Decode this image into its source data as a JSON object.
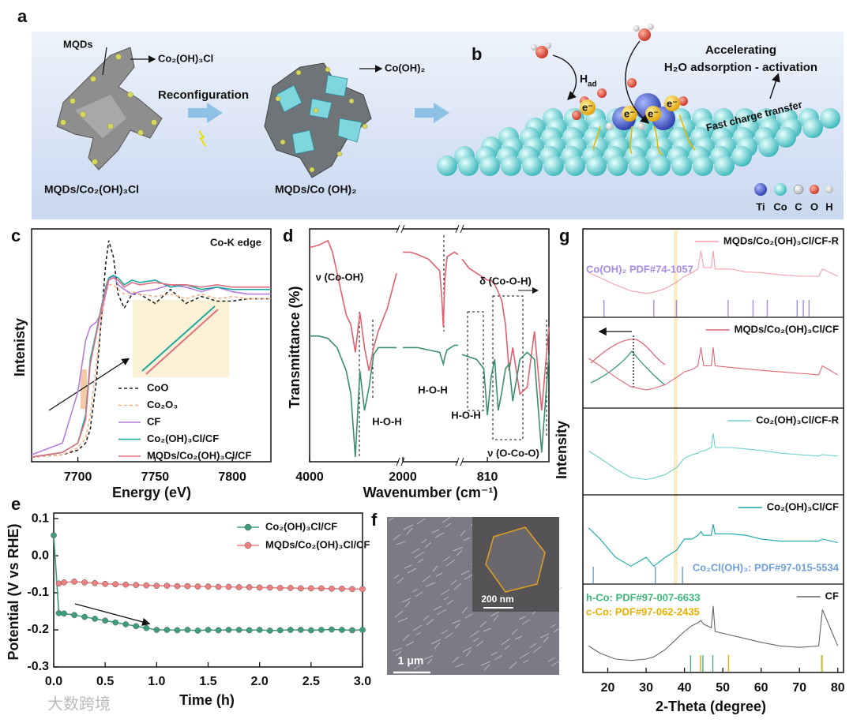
{
  "figure": {
    "panel_labels": [
      "a",
      "b",
      "c",
      "d",
      "e",
      "f",
      "g"
    ],
    "a": {
      "mqds": "MQDs",
      "precursor_phase": "Co₂(OH)₃Cl",
      "process": "Reconfiguration",
      "product_phase": "Co(OH)₂",
      "left_caption": "MQDs/Co₂(OH)₃Cl",
      "right_caption": "MQDs/Co (OH)₂"
    },
    "b": {
      "line1": "Accelerating",
      "line2": "H₂O adsorption - activation",
      "h_main": "H",
      "h_sub": "ad",
      "electron": "e⁻",
      "charge": "Fast charge transfer",
      "atoms": [
        "Ti",
        "Co",
        "C",
        "O",
        "H"
      ]
    },
    "f": {
      "inset_scale": "200 nm",
      "scale": "1 μm"
    },
    "watermark": "大数跨境"
  },
  "chart_data": [
    {
      "type": "line",
      "annotation": "Co-K edge",
      "xlabel": "Energy (eV)",
      "ylabel": "Intenisty",
      "x": [
        7670,
        7690,
        7700,
        7705,
        7708,
        7712,
        7715,
        7718,
        7720,
        7723,
        7726,
        7730,
        7735,
        7740,
        7750,
        7760,
        7770,
        7780,
        7790,
        7800,
        7810,
        7825
      ],
      "xlim": [
        7670,
        7825
      ],
      "xticks": [
        7700,
        7750,
        7800
      ],
      "ylim": [
        0,
        1
      ],
      "series": [
        {
          "name": "CoO",
          "color": "#222222",
          "dashed": true,
          "values": [
            0.02,
            0.03,
            0.05,
            0.08,
            0.14,
            0.35,
            0.6,
            0.85,
            0.95,
            0.88,
            0.72,
            0.66,
            0.72,
            0.72,
            0.68,
            0.74,
            0.68,
            0.71,
            0.69,
            0.69,
            0.7,
            0.7
          ]
        },
        {
          "name": "Co₂O₃",
          "color": "#f4b183",
          "dashed": true,
          "values": [
            0.02,
            0.03,
            0.06,
            0.1,
            0.2,
            0.42,
            0.6,
            0.72,
            0.76,
            0.76,
            0.74,
            0.72,
            0.73,
            0.72,
            0.71,
            0.72,
            0.7,
            0.72,
            0.7,
            0.71,
            0.7,
            0.7
          ]
        },
        {
          "name": "CF",
          "color": "#b57edc",
          "dashed": false,
          "values": [
            0.03,
            0.08,
            0.3,
            0.52,
            0.58,
            0.6,
            0.64,
            0.72,
            0.78,
            0.8,
            0.76,
            0.74,
            0.72,
            0.73,
            0.74,
            0.76,
            0.75,
            0.73,
            0.75,
            0.73,
            0.72,
            0.72
          ]
        },
        {
          "name": "Co₂(OH)₃Cl/CF",
          "color": "#1aa8a0",
          "dashed": false,
          "values": [
            0.02,
            0.04,
            0.08,
            0.2,
            0.44,
            0.56,
            0.66,
            0.75,
            0.79,
            0.8,
            0.79,
            0.76,
            0.78,
            0.77,
            0.78,
            0.75,
            0.76,
            0.74,
            0.75,
            0.74,
            0.74,
            0.74
          ]
        },
        {
          "name": "MQDs/Co₂(OH)₃Cl/CF",
          "color": "#e07080",
          "dashed": false,
          "values": [
            0.02,
            0.04,
            0.08,
            0.18,
            0.42,
            0.55,
            0.65,
            0.74,
            0.78,
            0.79,
            0.78,
            0.75,
            0.77,
            0.76,
            0.77,
            0.76,
            0.76,
            0.75,
            0.76,
            0.75,
            0.75,
            0.75
          ]
        }
      ]
    },
    {
      "type": "line",
      "xlabel": "Wavenumber (cm⁻¹)",
      "ylabel": "Transmittance (%)",
      "segments": [
        {
          "xlim": [
            4000,
            2050
          ]
        },
        {
          "xlim": [
            2000,
            1250
          ]
        },
        {
          "xlim": [
            880,
            640
          ]
        }
      ],
      "xticks": [
        4000,
        2000,
        810
      ],
      "ylim": [
        0,
        1
      ],
      "annotations": [
        "ν (Co-OH)",
        "H-O-H",
        "H-O-H",
        "H-O-H",
        "δ (Co-O-H)",
        "ν (O-Co-O)"
      ],
      "x": [
        4000,
        3800,
        3600,
        3500,
        3400,
        3200,
        3100,
        3000,
        2900,
        2800,
        2700,
        2600,
        2500,
        2300,
        2100,
        2025,
        2000,
        1900,
        1800,
        1650,
        1500,
        1470,
        1450,
        1430,
        1400,
        1300,
        1250,
        1000,
        880,
        860,
        840,
        820,
        810,
        800,
        790,
        780,
        770,
        760,
        750,
        740,
        720,
        700,
        680,
        660,
        640
      ],
      "series": [
        {
          "color": "#e06070",
          "values": [
            0.92,
            0.93,
            0.95,
            0.9,
            0.81,
            0.63,
            0.59,
            0.47,
            0.64,
            0.49,
            0.39,
            0.49,
            0.56,
            0.66,
            0.81,
            null,
            0.9,
            0.9,
            0.89,
            0.87,
            0.82,
            0.7,
            0.58,
            0.78,
            0.88,
            0.9,
            0.89,
            null,
            0.87,
            0.83,
            0.81,
            0.79,
            0.78,
            0.78,
            0.76,
            0.73,
            0.69,
            0.59,
            0.39,
            0.49,
            0.29,
            0.32,
            0.56,
            0.22,
            0.58
          ]
        },
        {
          "color": "#3a8f6a",
          "values": [
            0.54,
            0.54,
            0.53,
            0.51,
            0.49,
            0.39,
            0.29,
            0.02,
            0.39,
            0.22,
            0.32,
            0.46,
            0.49,
            0.49,
            0.49,
            null,
            0.49,
            0.49,
            0.49,
            0.48,
            0.47,
            0.44,
            0.42,
            0.45,
            0.48,
            0.5,
            0.5,
            null,
            0.46,
            0.45,
            0.44,
            0.4,
            0.2,
            0.36,
            0.44,
            0.22,
            0.3,
            0.4,
            0.42,
            0.26,
            0.44,
            0.47,
            0.44,
            0.04,
            0.46
          ]
        }
      ]
    },
    {
      "type": "line",
      "markers": true,
      "xlabel": "Time (h)",
      "ylabel": "Potential (V vs RHE)",
      "legend": "upper right",
      "x": [
        0,
        0.05,
        0.1,
        0.2,
        0.3,
        0.4,
        0.5,
        0.6,
        0.7,
        0.8,
        0.9,
        1.0,
        1.1,
        1.2,
        1.3,
        1.4,
        1.5,
        1.6,
        1.7,
        1.8,
        1.9,
        2.0,
        2.1,
        2.2,
        2.3,
        2.4,
        2.5,
        2.6,
        2.7,
        2.8,
        2.9,
        3.0
      ],
      "xlim": [
        0,
        3
      ],
      "ylim": [
        -0.3,
        0.115
      ],
      "xticks": [
        {
          "value": 0,
          "label": "0.0"
        },
        0.5,
        {
          "value": 1,
          "label": "1.0"
        },
        1.5,
        {
          "value": 2,
          "label": "2.0"
        },
        2.5,
        {
          "value": 3,
          "label": "3.0"
        }
      ],
      "yticks": [
        0.1,
        {
          "value": 0,
          "label": "0.0"
        },
        -0.1,
        -0.2,
        -0.3
      ],
      "series": [
        {
          "name": "Co₂(OH)₃Cl/CF",
          "color": "#3e9e7a",
          "values": [
            0.055,
            -0.155,
            -0.156,
            -0.16,
            -0.165,
            -0.17,
            -0.175,
            -0.18,
            -0.185,
            -0.19,
            -0.195,
            -0.2,
            -0.2,
            -0.201,
            -0.2,
            -0.202,
            -0.2,
            -0.201,
            -0.2,
            -0.2,
            -0.201,
            -0.2,
            -0.202,
            -0.201,
            -0.2,
            -0.2,
            -0.201,
            -0.2,
            -0.199,
            -0.2,
            -0.201,
            -0.2
          ]
        },
        {
          "name": "MQDs/Co₂(OH)₃Cl/CF",
          "color": "#f08080",
          "values": [
            null,
            -0.075,
            -0.072,
            -0.07,
            -0.072,
            -0.074,
            -0.076,
            -0.077,
            -0.078,
            -0.079,
            -0.08,
            -0.081,
            -0.081,
            -0.082,
            -0.082,
            -0.083,
            -0.083,
            -0.084,
            -0.084,
            -0.085,
            -0.085,
            -0.086,
            -0.086,
            -0.087,
            -0.087,
            -0.088,
            -0.088,
            -0.088,
            -0.089,
            -0.089,
            -0.09,
            -0.09
          ]
        }
      ]
    },
    {
      "type": "line",
      "xlabel": "2-Theta (degree)",
      "ylabel": "Intensity",
      "x": [
        15,
        18,
        22,
        26,
        30,
        32,
        35,
        38,
        40,
        42,
        43.5,
        44.3,
        45,
        47,
        47.5,
        48,
        52,
        56,
        60,
        65,
        70,
        75,
        76,
        80
      ],
      "xlim": [
        13.5,
        81.5
      ],
      "xticks": [
        20,
        30,
        40,
        50,
        60,
        70,
        80
      ],
      "ylim": [
        0,
        1
      ],
      "panels": [
        {
          "series": [
            {
              "name": "MQDs/Co₂(OH)₃Cl/CF-R",
              "color": "#f0a0a8",
              "values": [
                0.55,
                0.48,
                0.38,
                0.3,
                0.26,
                0.28,
                0.33,
                0.42,
                0.5,
                0.55,
                0.6,
                0.85,
                0.62,
                0.62,
                0.85,
                0.6,
                0.6,
                0.56,
                0.55,
                0.52,
                0.5,
                0.5,
                0.6,
                0.5
              ]
            }
          ],
          "references": [
            {
              "name": "Co(OH)₂ PDF#74-1057",
              "color": "#a78be0",
              "peaks": [
                19,
                32,
                37.9,
                51.4,
                57.9,
                61.6,
                69.4,
                71,
                72.5
              ]
            }
          ]
        },
        {
          "series": [
            {
              "name": "MQDs/Co₂(OH)₃Cl/CF",
              "color": "#e06878",
              "values": [
                0.6,
                0.5,
                0.35,
                0.22,
                0.18,
                0.2,
                0.25,
                0.35,
                0.42,
                0.45,
                0.5,
                0.75,
                0.5,
                0.5,
                0.75,
                0.5,
                0.48,
                0.46,
                0.44,
                0.42,
                0.4,
                0.38,
                0.5,
                0.38
              ]
            }
          ],
          "references": []
        },
        {
          "series": [
            {
              "name": "Co₂(OH)₃Cl/CF-R",
              "color": "#6fd0cc",
              "values": [
                0.55,
                0.45,
                0.3,
                0.18,
                0.15,
                0.17,
                0.22,
                0.32,
                0.45,
                0.5,
                0.52,
                0.55,
                0.55,
                0.6,
                0.8,
                0.6,
                0.6,
                0.58,
                0.56,
                0.52,
                0.5,
                0.48,
                0.5,
                0.48
              ]
            }
          ],
          "references": []
        },
        {
          "series": [
            {
              "name": "Co₂(OH)₃Cl/CF",
              "color": "#12a8a6",
              "values": [
                0.7,
                0.55,
                0.3,
                0.18,
                0.3,
                0.18,
                0.3,
                0.4,
                0.55,
                0.55,
                0.6,
                0.65,
                0.6,
                0.6,
                0.75,
                0.62,
                0.62,
                0.6,
                0.55,
                0.52,
                0.52,
                0.52,
                0.55,
                0.5
              ]
            }
          ],
          "references": [
            {
              "name": "Co₂Cl(OH)₃: PDF#97-015-5534",
              "color": "#6f9fd8",
              "peaks": [
                16.2,
                32.4,
                39.5
              ]
            }
          ]
        },
        {
          "series": [
            {
              "name": "CF",
              "color": "#666666",
              "values": [
                0.3,
                0.2,
                0.12,
                0.1,
                0.12,
                0.15,
                0.25,
                0.4,
                0.5,
                0.58,
                0.62,
                0.65,
                0.6,
                0.55,
                0.85,
                0.5,
                0.45,
                0.4,
                0.35,
                0.3,
                0.28,
                0.3,
                0.8,
                0.3
              ]
            }
          ],
          "references": [
            {
              "name": "h-Co: PDF#97-007-6633",
              "color": "#3cb878",
              "peaks": [
                41.6,
                44.8,
                47.4,
                75.9
              ]
            },
            {
              "name": "c-Co: PDF#97-062-2435",
              "color": "#e8b000",
              "peaks": [
                44.2,
                51.5,
                75.8
              ]
            }
          ]
        }
      ]
    }
  ]
}
